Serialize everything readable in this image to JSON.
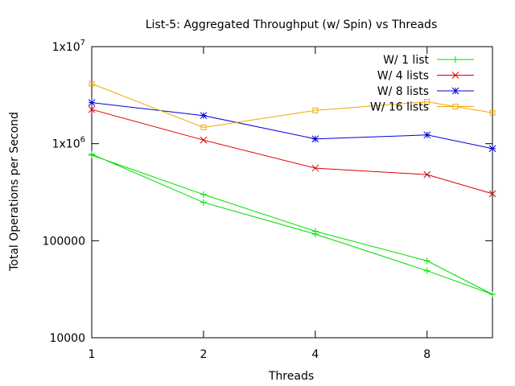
{
  "chart_data": {
    "type": "line",
    "title": "List-5: Aggregated Throughput (w/ Spin) vs Threads",
    "xlabel": "Threads",
    "ylabel": "Total Operations per Second",
    "x_scale": "log2",
    "y_scale": "log10",
    "xlim": [
      1,
      12
    ],
    "ylim": [
      10000,
      10000000
    ],
    "x_ticks": [
      {
        "value": 1,
        "label": "1"
      },
      {
        "value": 2,
        "label": "2"
      },
      {
        "value": 4,
        "label": "4"
      },
      {
        "value": 8,
        "label": "8"
      }
    ],
    "y_ticks": [
      {
        "value": 10000,
        "label": "10000"
      },
      {
        "value": 100000,
        "label": "100000"
      },
      {
        "value": 1000000,
        "label": "1x10",
        "sup": "6"
      },
      {
        "value": 10000000,
        "label": "1x10",
        "sup": "7"
      }
    ],
    "grid": false,
    "legend_position": "top-right",
    "series": [
      {
        "name": "W/ 1 list",
        "color": "#00dd00",
        "marker": "plus",
        "x": [
          1,
          2,
          4,
          8,
          12,
          8,
          4,
          2,
          1
        ],
        "y": [
          760000,
          300000,
          125000,
          62000,
          28000,
          49000,
          117000,
          248000,
          780000
        ]
      },
      {
        "name": "W/ 4 lists",
        "color": "#dd0000",
        "marker": "cross",
        "x": [
          1,
          2,
          4,
          8,
          12
        ],
        "y": [
          2250000,
          1090000,
          560000,
          480000,
          305000
        ]
      },
      {
        "name": "W/ 8 lists",
        "color": "#0000dd",
        "marker": "star",
        "x": [
          1,
          2,
          4,
          8,
          12
        ],
        "y": [
          2650000,
          1950000,
          1120000,
          1230000,
          890000
        ]
      },
      {
        "name": "W/ 16 lists",
        "color": "#f0a800",
        "marker": "square",
        "x": [
          1,
          2,
          4,
          8,
          12
        ],
        "y": [
          4150000,
          1470000,
          2200000,
          2700000,
          2080000
        ]
      }
    ]
  }
}
